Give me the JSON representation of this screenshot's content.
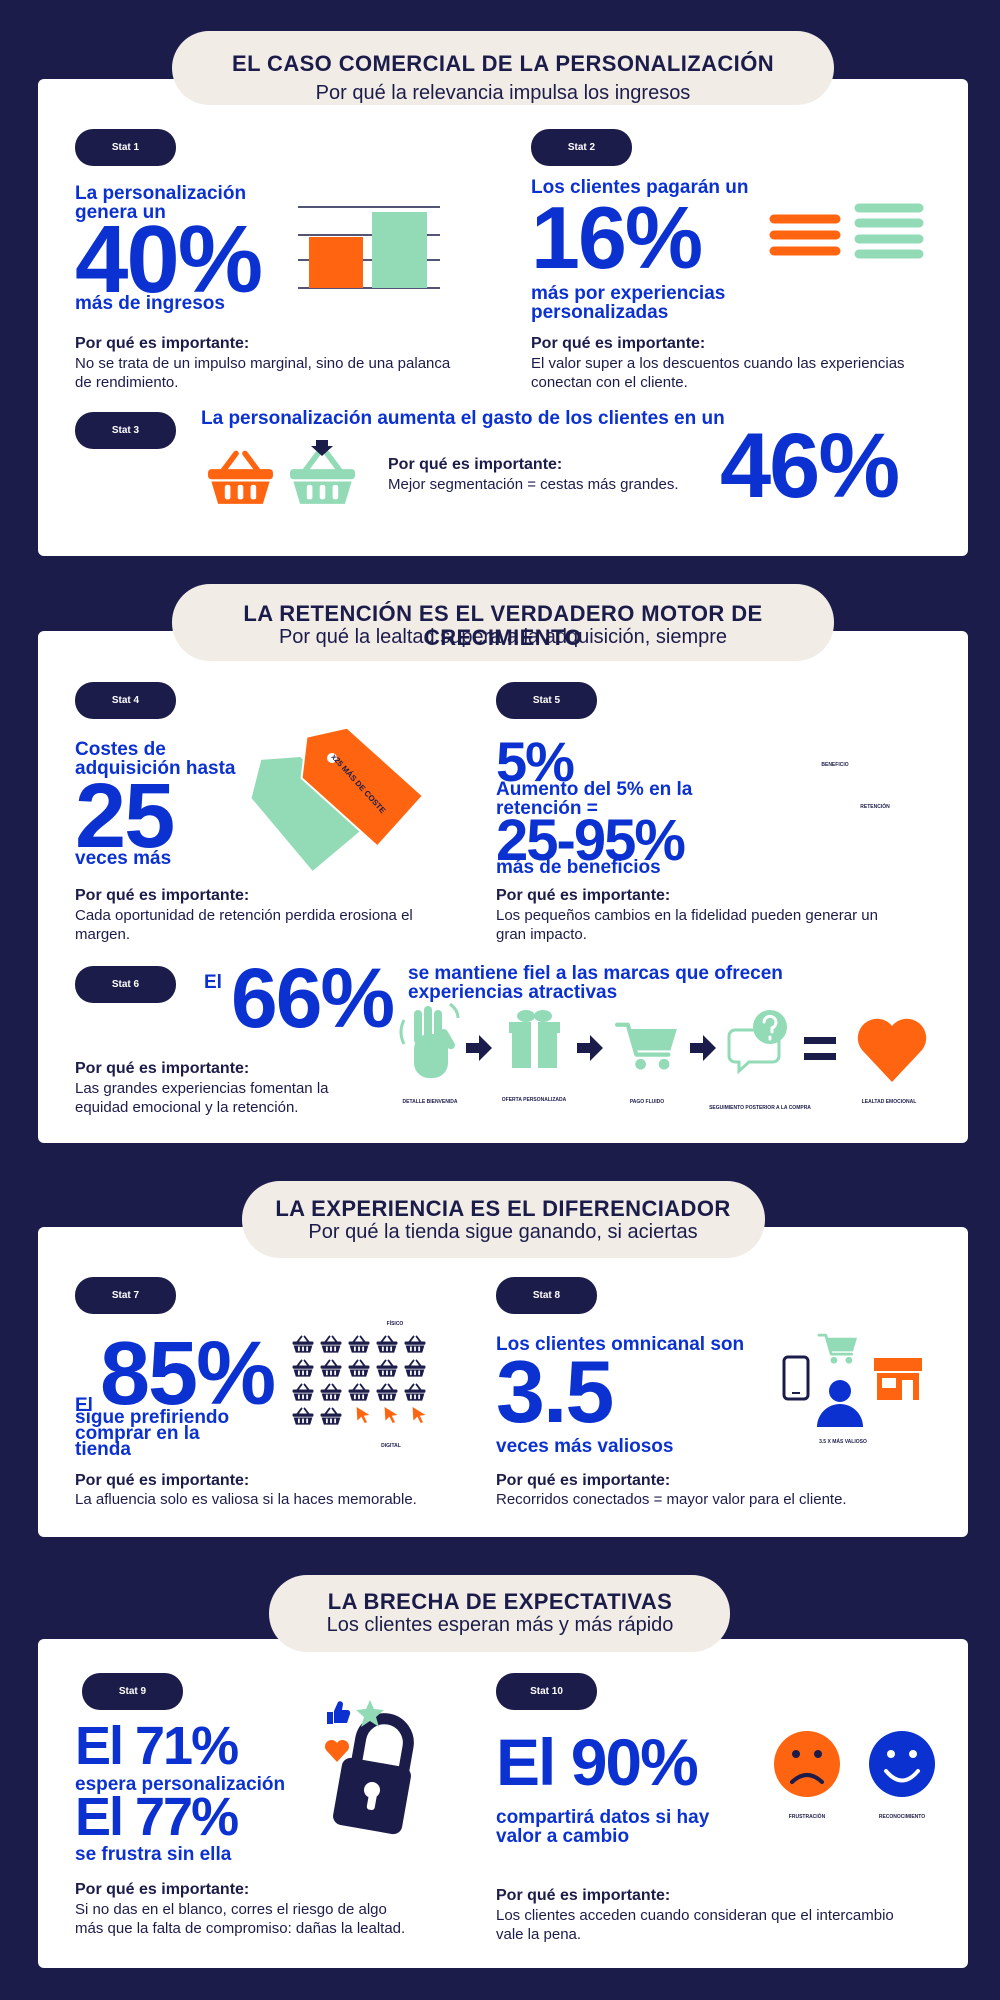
{
  "why_heading": "Por qué es importante:",
  "sections": [
    {
      "title": "EL CASO COMERCIAL DE LA PERSONALIZACIÓN",
      "subtitle": "Por qué la relevancia impulsa los ingresos",
      "stats": [
        {
          "badge": "Stat 1",
          "lead": "La personalización genera un",
          "figure": "40%",
          "tail": "más de ingresos",
          "why": "No se trata de un impulso marginal, sino de una palanca de rendimiento."
        },
        {
          "badge": "Stat 2",
          "lead": "Los clientes pagarán un",
          "figure": "16%",
          "tail": "más por experiencias personalizadas",
          "why": "El valor super a los descuentos cuando las experiencias conectan con el cliente."
        },
        {
          "badge": "Stat 3",
          "lead": "La personalización aumenta el gasto de los clientes en un",
          "figure": "46%",
          "why": "Mejor segmentación = cestas más grandes."
        }
      ]
    },
    {
      "title": "LA RETENCIÓN ES EL VERDADERO MOTOR DE CRECIMIENTO",
      "subtitle": "Por qué la lealtad supera a la adquisición, siempre",
      "stats": [
        {
          "badge": "Stat 4",
          "lead": "Costes de adquisición hasta",
          "figure": "25",
          "tail": "veces más",
          "tag": "x25 MÁS DE COSTE",
          "why": "Cada oportunidad de retención perdida erosiona el margen."
        },
        {
          "badge": "Stat 5",
          "figure": "5%",
          "lead": "Aumento del 5% en la retención =",
          "figure2": "25-95%",
          "tail": "más de beneficios",
          "labels": [
            "BENEFICIO",
            "RETENCIÓN"
          ],
          "why": "Los pequeños cambios en la fidelidad pueden generar un gran impacto."
        },
        {
          "badge": "Stat 6",
          "prefix": "El",
          "figure": "66%",
          "tail": "se mantiene fiel a las marcas que ofrecen experiencias atractivas",
          "labels": [
            "DETALLE BIENVENIDA",
            "OFERTA PERSONALIZADA",
            "PAGO FLUIDO",
            "SEGUIMIENTO POSTERIOR A LA COMPRA",
            "LEALTAD EMOCIONAL"
          ],
          "why": "Las grandes experiencias fomentan la equidad emocional y la retención."
        }
      ]
    },
    {
      "title": "LA EXPERIENCIA ES EL DIFERENCIADOR",
      "subtitle": "Por qué la tienda sigue ganando, si aciertas",
      "stats": [
        {
          "badge": "Stat 7",
          "prefix": "El",
          "figure": "85%",
          "tail": "sigue prefiriendo comprar en la tienda",
          "labels": [
            "FÍSICO",
            "DIGITAL"
          ],
          "why": "La afluencia solo es valiosa si la haces memorable."
        },
        {
          "badge": "Stat 8",
          "lead": "Los clientes omnicanal son",
          "figure": "3.5",
          "tail": "veces más valiosos",
          "labels": [
            "3.5 X MÁS VALIOSO"
          ],
          "why": "Recorridos conectados = mayor valor para el cliente."
        }
      ]
    },
    {
      "title": "LA BRECHA DE EXPECTATIVAS",
      "subtitle": "Los clientes esperan más y más rápido",
      "stats": [
        {
          "badge": "Stat 9",
          "figure": "El 71%",
          "lead": "espera personalización",
          "figure2": "El 77%",
          "tail": "se frustra sin ella",
          "why": "Si no das en el blanco, corres el riesgo de algo más que la falta de compromiso: dañas la lealtad."
        },
        {
          "badge": "Stat 10",
          "figure": "El 90%",
          "tail": "compartirá datos si hay valor a cambio",
          "labels": [
            "FRUSTRACIÓN",
            "RECONOCIMIENTO"
          ],
          "why": "Los clientes acceden cuando consideran que el intercambio vale la pena."
        }
      ]
    }
  ]
}
